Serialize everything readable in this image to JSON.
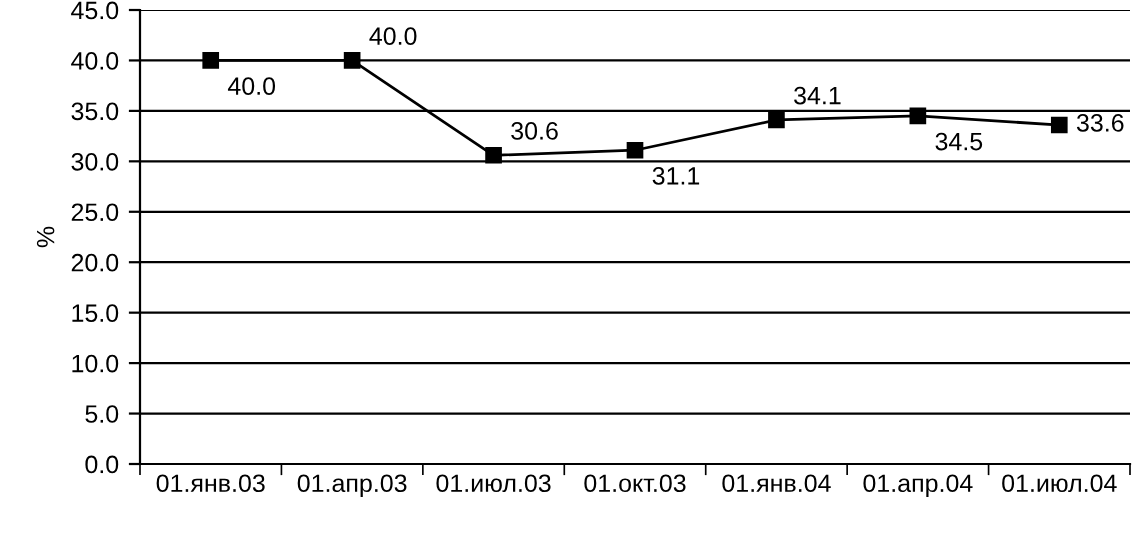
{
  "chart_data": {
    "type": "line",
    "ylabel": "%",
    "categories": [
      "01.янв.03",
      "01.апр.03",
      "01.июл.03",
      "01.окт.03",
      "01.янв.04",
      "01.апр.04",
      "01.июл.04"
    ],
    "values": [
      40.0,
      40.0,
      30.6,
      31.1,
      34.1,
      34.5,
      33.6
    ],
    "value_labels": [
      "40.0",
      "40.0",
      "30.6",
      "31.1",
      "34.1",
      "34.5",
      "33.6"
    ],
    "color": "#000000",
    "marker": "square",
    "line_style": "solid",
    "ylim": [
      0,
      45
    ],
    "yticks": [
      {
        "value": 0,
        "label": "0.0"
      },
      {
        "value": 5,
        "label": "5.0"
      },
      {
        "value": 10,
        "label": "10.0"
      },
      {
        "value": 15,
        "label": "15.0"
      },
      {
        "value": 20,
        "label": "20.0"
      },
      {
        "value": 25,
        "label": "25.0"
      },
      {
        "value": 30,
        "label": "30.0"
      },
      {
        "value": 35,
        "label": "35.0"
      },
      {
        "value": 40,
        "label": "40.0"
      },
      {
        "value": 45,
        "label": "45.0"
      }
    ],
    "grid": "y",
    "legend": false
  }
}
